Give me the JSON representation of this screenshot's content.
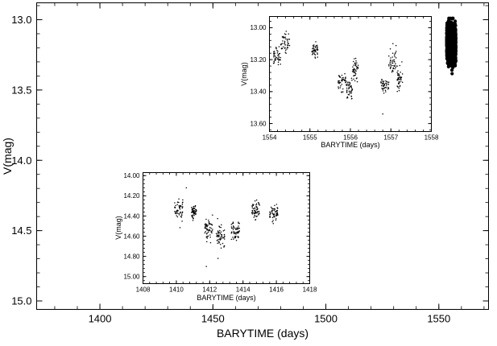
{
  "chart_data": [
    {
      "type": "scatter",
      "xlabel": "BARYTIME (days)",
      "ylabel": "V(mag)",
      "xlim": [
        1372,
        1572
      ],
      "ylim": [
        15.06,
        12.88
      ],
      "y_inverted": true,
      "xticks": [
        1400,
        1450,
        1500,
        1550
      ],
      "xtick_labels": [
        "1400",
        "1450",
        "1500",
        "1550"
      ],
      "yticks": [
        13.0,
        13.5,
        14.0,
        14.5,
        15.0
      ],
      "ytick_labels": [
        "13.0",
        "13.5",
        "14.0",
        "14.5",
        "15.0"
      ],
      "marker": "filled-circle",
      "color": "#000000",
      "series": [
        {
          "clusters": [
            {
              "x_range": [
                1410.0,
                1416.0
              ],
              "y_center": 14.43,
              "y_spread": 0.17,
              "y_min": 14.1,
              "y_max": 14.93
            },
            {
              "x_range": [
                1553.5,
                1557.5
              ],
              "y_center": 13.17,
              "y_spread": 0.1,
              "y_min": 12.99,
              "y_max": 13.45
            }
          ]
        }
      ]
    },
    {
      "type": "scatter",
      "xlabel": "BARYTIME (days)",
      "ylabel": "V(mag)",
      "xlim": [
        1554.0,
        1558.0
      ],
      "ylim": [
        13.65,
        12.93
      ],
      "y_inverted": true,
      "xticks": [
        1554,
        1555,
        1556,
        1557,
        1558
      ],
      "xtick_labels": [
        "1554",
        "1555",
        "1556",
        "1557",
        "1558"
      ],
      "yticks": [
        13.0,
        13.2,
        13.4,
        13.6
      ],
      "ytick_labels": [
        "13.00",
        "13.20",
        "13.40",
        "13.60"
      ],
      "marker": "dot",
      "color": "#000000",
      "series": [
        {
          "segments": [
            {
              "x_range": [
                1554.1,
                1554.28
              ],
              "y_center": 13.18,
              "y_spread": 0.04
            },
            {
              "x_range": [
                1554.28,
                1554.5
              ],
              "y_center": 13.09,
              "y_spread": 0.04
            },
            {
              "x_range": [
                1555.05,
                1555.2
              ],
              "y_center": 13.14,
              "y_spread": 0.03
            },
            {
              "x_range": [
                1555.7,
                1555.9
              ],
              "y_center": 13.34,
              "y_spread": 0.04
            },
            {
              "x_range": [
                1555.9,
                1556.05
              ],
              "y_center": 13.38,
              "y_spread": 0.05
            },
            {
              "x_range": [
                1556.05,
                1556.2
              ],
              "y_center": 13.26,
              "y_spread": 0.05
            },
            {
              "x_range": [
                1556.75,
                1556.95
              ],
              "y_center": 13.36,
              "y_spread": 0.04
            },
            {
              "x_range": [
                1556.95,
                1557.15
              ],
              "y_center": 13.22,
              "y_spread": 0.05
            },
            {
              "x_range": [
                1557.15,
                1557.3
              ],
              "y_center": 13.32,
              "y_spread": 0.05
            }
          ],
          "outliers": [
            [
              1556.8,
              13.54
            ],
            [
              1557.05,
              13.1
            ]
          ]
        }
      ]
    },
    {
      "type": "scatter",
      "xlabel": "BARYTIME (days)",
      "ylabel": "V(mag)",
      "xlim": [
        1408,
        1418
      ],
      "ylim": [
        15.07,
        13.97
      ],
      "y_inverted": true,
      "xticks": [
        1408,
        1410,
        1412,
        1414,
        1416,
        1418
      ],
      "xtick_labels": [
        "1408",
        "1410",
        "1412",
        "1414",
        "1416",
        "1418"
      ],
      "yticks": [
        14.0,
        14.2,
        14.4,
        14.6,
        14.8,
        15.0
      ],
      "ytick_labels": [
        "14.00",
        "14.20",
        "14.40",
        "14.60",
        "14.80",
        "15.00"
      ],
      "marker": "dot",
      "color": "#000000",
      "series": [
        {
          "segments": [
            {
              "x_range": [
                1409.9,
                1410.4
              ],
              "y_center": 14.33,
              "y_spread": 0.07
            },
            {
              "x_range": [
                1410.9,
                1411.2
              ],
              "y_center": 14.36,
              "y_spread": 0.05
            },
            {
              "x_range": [
                1411.7,
                1412.2
              ],
              "y_center": 14.52,
              "y_spread": 0.08
            },
            {
              "x_range": [
                1412.4,
                1412.9
              ],
              "y_center": 14.6,
              "y_spread": 0.08
            },
            {
              "x_range": [
                1413.3,
                1413.8
              ],
              "y_center": 14.55,
              "y_spread": 0.07
            },
            {
              "x_range": [
                1414.5,
                1415.0
              ],
              "y_center": 14.35,
              "y_spread": 0.06
            },
            {
              "x_range": [
                1415.6,
                1416.1
              ],
              "y_center": 14.37,
              "y_spread": 0.06
            }
          ],
          "outliers": [
            [
              1411.8,
              14.9
            ],
            [
              1410.6,
              14.12
            ],
            [
              1412.5,
              14.82
            ]
          ]
        }
      ]
    }
  ]
}
